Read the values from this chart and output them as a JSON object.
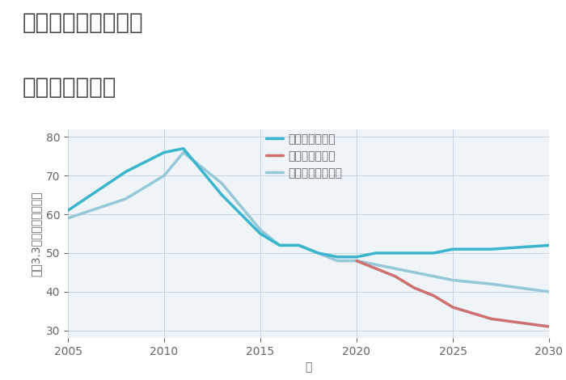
{
  "title_line1": "千葉県船橋市金杉の",
  "title_line2": "土地の価格推移",
  "xlabel": "年",
  "ylabel": "坪（3.3㎡）単価（万円）",
  "background_color": "#ffffff",
  "plot_background_color": "#eef4f8",
  "grid_color": "#c5d8e8",
  "good_scenario": {
    "label": "グッドシナリオ",
    "color": "#3bb5cc",
    "years": [
      2005,
      2008,
      2010,
      2011,
      2013,
      2015,
      2016,
      2017,
      2018,
      2019,
      2020,
      2021,
      2022,
      2023,
      2024,
      2025,
      2027,
      2030
    ],
    "values": [
      61,
      71,
      76,
      77,
      65,
      55,
      52,
      52,
      50,
      49,
      49,
      50,
      50,
      50,
      50,
      51,
      51,
      52
    ]
  },
  "bad_scenario": {
    "label": "バッドシナリオ",
    "color": "#cc7070",
    "years": [
      2020,
      2021,
      2022,
      2023,
      2024,
      2025,
      2027,
      2030
    ],
    "values": [
      48,
      46,
      44,
      41,
      39,
      36,
      33,
      31
    ]
  },
  "normal_scenario": {
    "label": "ノーマルシナリオ",
    "color": "#96c8d8",
    "years": [
      2005,
      2008,
      2010,
      2011,
      2013,
      2015,
      2016,
      2017,
      2018,
      2019,
      2020,
      2021,
      2022,
      2023,
      2024,
      2025,
      2027,
      2030
    ],
    "values": [
      59,
      64,
      70,
      76,
      68,
      56,
      52,
      52,
      50,
      48,
      48,
      47,
      46,
      45,
      44,
      43,
      42,
      40
    ]
  },
  "xlim": [
    2005,
    2030
  ],
  "ylim": [
    28,
    82
  ],
  "yticks": [
    30,
    40,
    50,
    60,
    70,
    80
  ],
  "xticks": [
    2005,
    2010,
    2015,
    2020,
    2025,
    2030
  ],
  "title_fontsize": 20,
  "axis_label_fontsize": 10,
  "tick_fontsize": 10,
  "legend_fontsize": 10,
  "line_width": 2.5,
  "title_color": "#444444",
  "tick_color": "#666666",
  "label_color": "#666666"
}
